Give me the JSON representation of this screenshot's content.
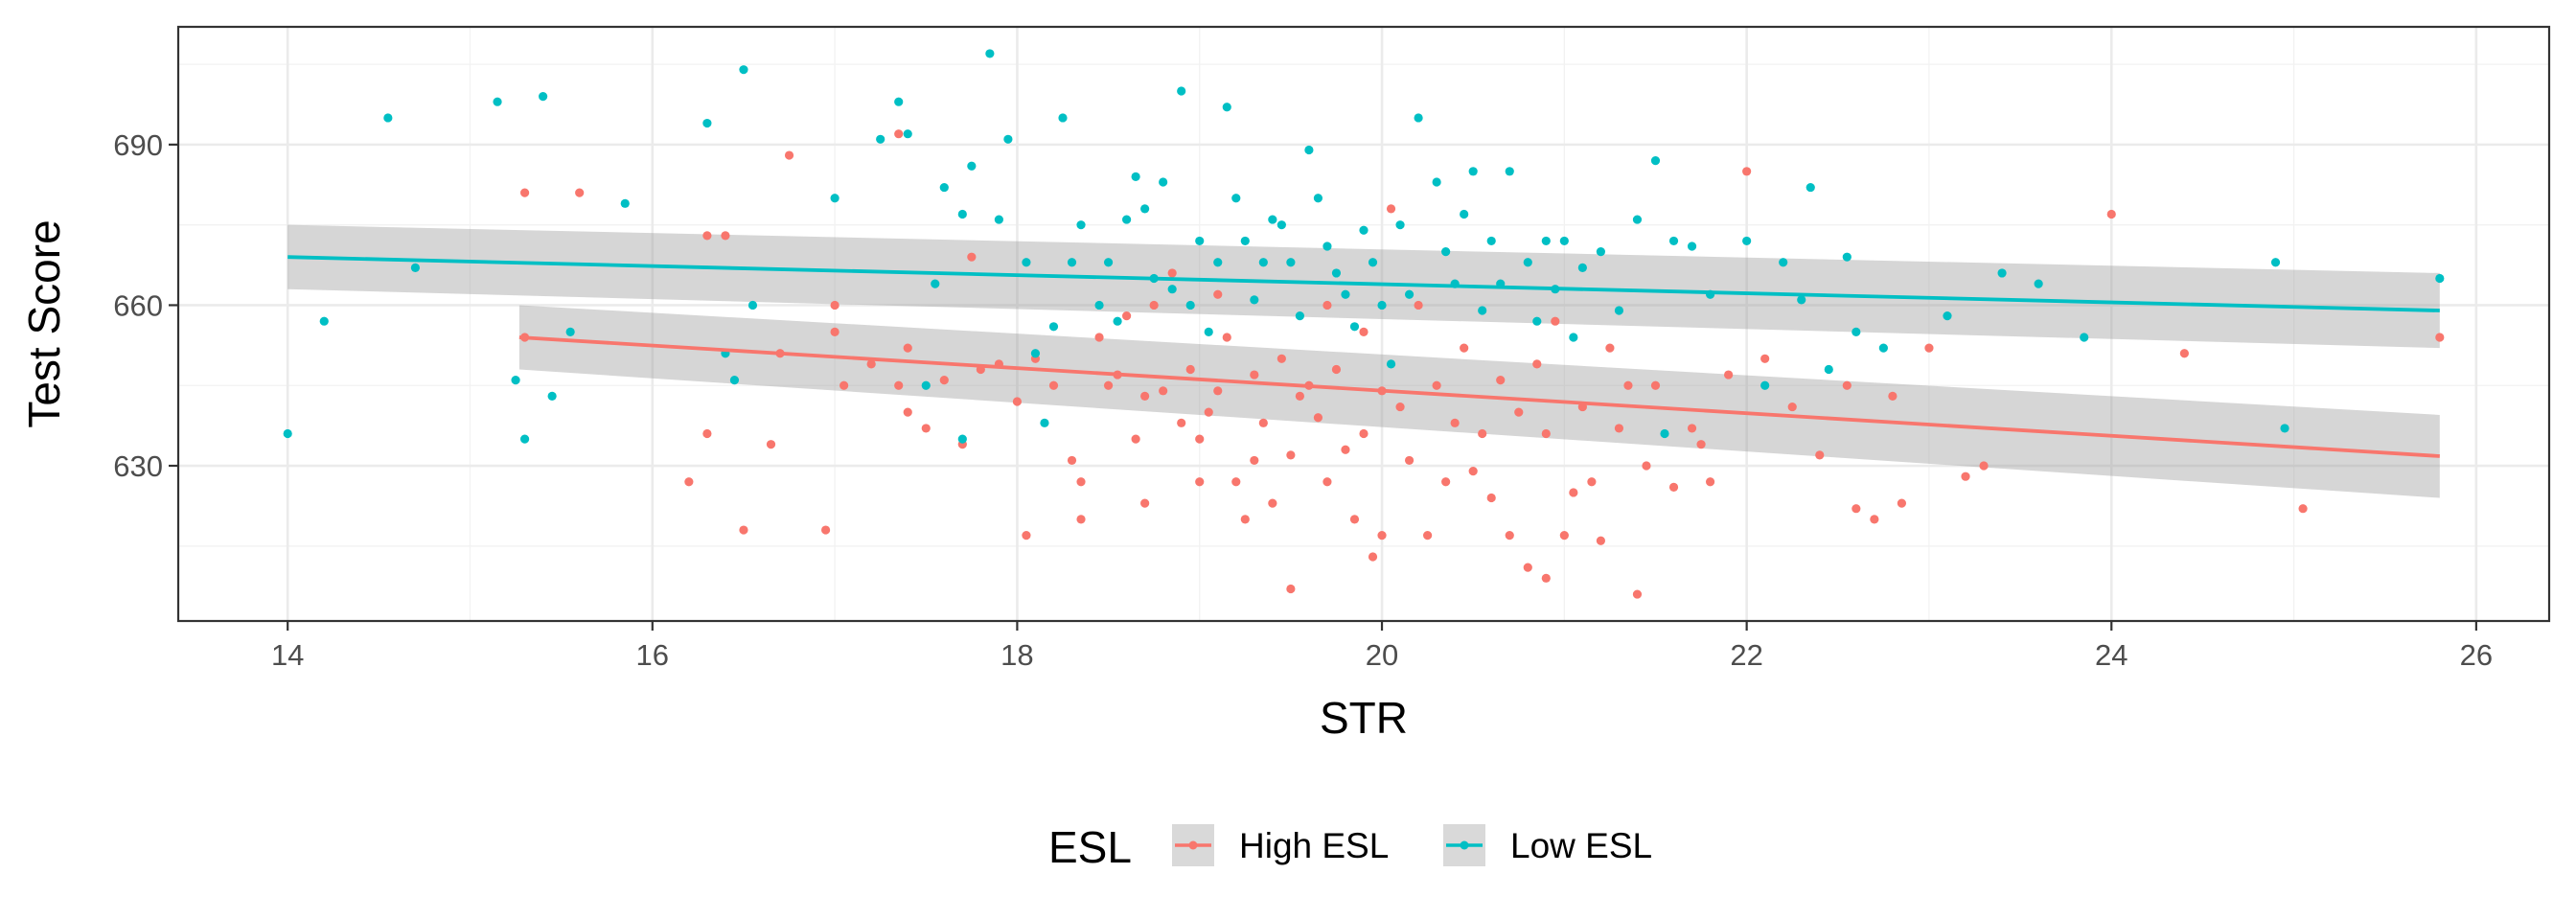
{
  "chart_data": {
    "type": "scatter",
    "title": "",
    "xlabel": "STR",
    "ylabel": "Test Score",
    "xlim": [
      13.4,
      26.4
    ],
    "ylim": [
      601,
      712
    ],
    "x_ticks": [
      14,
      16,
      18,
      20,
      22,
      24,
      26
    ],
    "y_ticks": [
      630,
      660,
      690
    ],
    "grid": true,
    "legend": {
      "title": "ESL",
      "position": "bottom",
      "entries": [
        "High ESL",
        "Low ESL"
      ]
    },
    "series": [
      {
        "name": "High ESL",
        "color": "#F8766D",
        "trend": {
          "x": [
            15.27,
            25.8
          ],
          "y": [
            654,
            631.8
          ],
          "ci_lower": [
            648,
            624
          ],
          "ci_upper": [
            660,
            639.5
          ]
        },
        "points": [
          [
            15.3,
            681
          ],
          [
            15.6,
            681
          ],
          [
            15.3,
            654
          ],
          [
            16.2,
            627
          ],
          [
            16.3,
            673
          ],
          [
            16.3,
            636
          ],
          [
            16.4,
            673
          ],
          [
            16.5,
            618
          ],
          [
            16.7,
            651
          ],
          [
            16.65,
            634
          ],
          [
            16.75,
            688
          ],
          [
            16.95,
            618
          ],
          [
            17.0,
            660
          ],
          [
            17.0,
            655
          ],
          [
            17.05,
            645
          ],
          [
            17.2,
            649
          ],
          [
            17.35,
            645
          ],
          [
            17.4,
            640
          ],
          [
            17.4,
            652
          ],
          [
            17.35,
            692
          ],
          [
            17.5,
            637
          ],
          [
            17.6,
            646
          ],
          [
            17.7,
            634
          ],
          [
            17.75,
            669
          ],
          [
            17.8,
            648
          ],
          [
            17.9,
            649
          ],
          [
            18.05,
            617
          ],
          [
            18.0,
            642
          ],
          [
            18.1,
            650
          ],
          [
            18.2,
            645
          ],
          [
            18.3,
            631
          ],
          [
            18.35,
            627
          ],
          [
            18.35,
            620
          ],
          [
            18.45,
            654
          ],
          [
            18.5,
            645
          ],
          [
            18.55,
            647
          ],
          [
            18.6,
            658
          ],
          [
            18.65,
            635
          ],
          [
            18.7,
            623
          ],
          [
            18.7,
            643
          ],
          [
            18.75,
            660
          ],
          [
            18.8,
            644
          ],
          [
            18.85,
            666
          ],
          [
            18.9,
            638
          ],
          [
            18.95,
            648
          ],
          [
            19.0,
            627
          ],
          [
            19.0,
            635
          ],
          [
            19.05,
            640
          ],
          [
            19.1,
            662
          ],
          [
            19.1,
            644
          ],
          [
            19.15,
            654
          ],
          [
            19.2,
            627
          ],
          [
            19.25,
            620
          ],
          [
            19.3,
            631
          ],
          [
            19.3,
            647
          ],
          [
            19.35,
            638
          ],
          [
            19.4,
            623
          ],
          [
            19.45,
            650
          ],
          [
            19.5,
            607
          ],
          [
            19.5,
            632
          ],
          [
            19.55,
            643
          ],
          [
            19.6,
            645
          ],
          [
            19.65,
            639
          ],
          [
            19.7,
            627
          ],
          [
            19.7,
            660
          ],
          [
            19.75,
            648
          ],
          [
            19.8,
            633
          ],
          [
            19.85,
            620
          ],
          [
            19.9,
            636
          ],
          [
            19.9,
            655
          ],
          [
            19.95,
            613
          ],
          [
            20.0,
            617
          ],
          [
            20.0,
            644
          ],
          [
            20.05,
            678
          ],
          [
            20.1,
            641
          ],
          [
            20.15,
            631
          ],
          [
            20.2,
            660
          ],
          [
            20.25,
            617
          ],
          [
            20.3,
            645
          ],
          [
            20.35,
            627
          ],
          [
            20.4,
            638
          ],
          [
            20.45,
            652
          ],
          [
            20.5,
            629
          ],
          [
            20.55,
            636
          ],
          [
            20.6,
            624
          ],
          [
            20.65,
            646
          ],
          [
            20.7,
            617
          ],
          [
            20.75,
            640
          ],
          [
            20.8,
            611
          ],
          [
            20.85,
            649
          ],
          [
            20.9,
            609
          ],
          [
            20.9,
            636
          ],
          [
            20.95,
            657
          ],
          [
            21.0,
            617
          ],
          [
            21.05,
            625
          ],
          [
            21.1,
            641
          ],
          [
            21.15,
            627
          ],
          [
            21.2,
            616
          ],
          [
            21.25,
            652
          ],
          [
            21.3,
            637
          ],
          [
            21.35,
            645
          ],
          [
            21.4,
            606
          ],
          [
            21.45,
            630
          ],
          [
            21.5,
            645
          ],
          [
            21.6,
            626
          ],
          [
            21.7,
            637
          ],
          [
            21.75,
            634
          ],
          [
            21.8,
            627
          ],
          [
            21.9,
            647
          ],
          [
            22.0,
            685
          ],
          [
            22.1,
            650
          ],
          [
            22.25,
            641
          ],
          [
            22.4,
            632
          ],
          [
            22.55,
            645
          ],
          [
            22.6,
            622
          ],
          [
            22.7,
            620
          ],
          [
            22.8,
            643
          ],
          [
            22.85,
            623
          ],
          [
            23.0,
            652
          ],
          [
            23.2,
            628
          ],
          [
            23.3,
            630
          ],
          [
            24.0,
            677
          ],
          [
            24.4,
            651
          ],
          [
            25.05,
            622
          ],
          [
            25.8,
            654
          ]
        ]
      },
      {
        "name": "Low ESL",
        "color": "#00BFC4",
        "trend": {
          "x": [
            14.0,
            25.8
          ],
          "y": [
            669,
            659
          ],
          "ci_lower": [
            663,
            652
          ],
          "ci_upper": [
            675,
            666
          ]
        },
        "points": [
          [
            14.0,
            636
          ],
          [
            14.2,
            657
          ],
          [
            14.55,
            695
          ],
          [
            14.7,
            667
          ],
          [
            15.15,
            698
          ],
          [
            15.25,
            646
          ],
          [
            15.3,
            635
          ],
          [
            15.4,
            699
          ],
          [
            15.45,
            643
          ],
          [
            15.55,
            655
          ],
          [
            15.85,
            679
          ],
          [
            16.3,
            694
          ],
          [
            16.4,
            651
          ],
          [
            16.45,
            646
          ],
          [
            16.5,
            704
          ],
          [
            16.55,
            660
          ],
          [
            17.0,
            680
          ],
          [
            17.25,
            691
          ],
          [
            17.35,
            698
          ],
          [
            17.4,
            692
          ],
          [
            17.5,
            645
          ],
          [
            17.55,
            664
          ],
          [
            17.6,
            682
          ],
          [
            17.7,
            677
          ],
          [
            17.75,
            686
          ],
          [
            17.7,
            635
          ],
          [
            17.85,
            707
          ],
          [
            17.9,
            676
          ],
          [
            17.95,
            691
          ],
          [
            18.05,
            668
          ],
          [
            18.1,
            651
          ],
          [
            18.15,
            638
          ],
          [
            18.2,
            656
          ],
          [
            18.25,
            695
          ],
          [
            18.3,
            668
          ],
          [
            18.35,
            675
          ],
          [
            18.45,
            660
          ],
          [
            18.5,
            668
          ],
          [
            18.55,
            657
          ],
          [
            18.6,
            676
          ],
          [
            18.65,
            684
          ],
          [
            18.7,
            678
          ],
          [
            18.75,
            665
          ],
          [
            18.8,
            683
          ],
          [
            18.85,
            663
          ],
          [
            18.9,
            700
          ],
          [
            18.95,
            660
          ],
          [
            19.0,
            672
          ],
          [
            19.05,
            655
          ],
          [
            19.1,
            668
          ],
          [
            19.15,
            697
          ],
          [
            19.2,
            680
          ],
          [
            19.25,
            672
          ],
          [
            19.3,
            661
          ],
          [
            19.35,
            668
          ],
          [
            19.4,
            676
          ],
          [
            19.45,
            675
          ],
          [
            19.5,
            668
          ],
          [
            19.55,
            658
          ],
          [
            19.6,
            689
          ],
          [
            19.65,
            680
          ],
          [
            19.7,
            671
          ],
          [
            19.75,
            666
          ],
          [
            19.8,
            662
          ],
          [
            19.85,
            656
          ],
          [
            19.9,
            674
          ],
          [
            19.95,
            668
          ],
          [
            20.0,
            660
          ],
          [
            20.05,
            649
          ],
          [
            20.1,
            675
          ],
          [
            20.15,
            662
          ],
          [
            20.2,
            695
          ],
          [
            20.3,
            683
          ],
          [
            20.35,
            670
          ],
          [
            20.4,
            664
          ],
          [
            20.45,
            677
          ],
          [
            20.5,
            685
          ],
          [
            20.55,
            659
          ],
          [
            20.6,
            672
          ],
          [
            20.65,
            664
          ],
          [
            20.7,
            685
          ],
          [
            20.8,
            668
          ],
          [
            20.85,
            657
          ],
          [
            20.9,
            672
          ],
          [
            20.95,
            663
          ],
          [
            21.0,
            672
          ],
          [
            21.05,
            654
          ],
          [
            21.1,
            667
          ],
          [
            21.2,
            670
          ],
          [
            21.3,
            659
          ],
          [
            21.4,
            676
          ],
          [
            21.5,
            687
          ],
          [
            21.55,
            636
          ],
          [
            21.6,
            672
          ],
          [
            21.7,
            671
          ],
          [
            21.8,
            662
          ],
          [
            22.0,
            672
          ],
          [
            22.1,
            645
          ],
          [
            22.2,
            668
          ],
          [
            22.3,
            661
          ],
          [
            22.35,
            682
          ],
          [
            22.45,
            648
          ],
          [
            22.55,
            669
          ],
          [
            22.6,
            655
          ],
          [
            22.75,
            652
          ],
          [
            23.1,
            658
          ],
          [
            23.4,
            666
          ],
          [
            23.6,
            664
          ],
          [
            23.85,
            654
          ],
          [
            24.9,
            668
          ],
          [
            24.95,
            637
          ],
          [
            25.8,
            665
          ]
        ]
      }
    ]
  }
}
